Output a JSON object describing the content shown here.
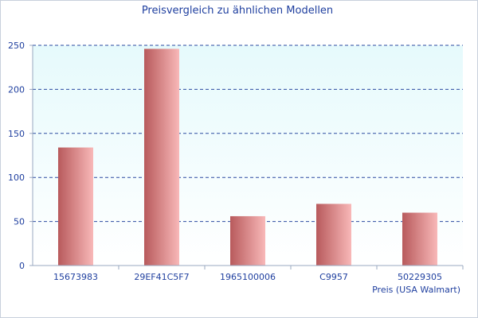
{
  "chart_data": {
    "type": "bar",
    "title": "Preisvergleich zu ähnlichen Modellen",
    "xlabel": "Preis (USA Walmart)",
    "ylabel": "",
    "categories": [
      "15673983",
      "29EF41C5F7",
      "1965100006",
      "C9957",
      "50229305"
    ],
    "values": [
      134,
      246,
      56,
      70,
      60
    ],
    "ylim": [
      0,
      250
    ],
    "yticks": [
      0,
      50,
      100,
      150,
      200,
      250
    ],
    "grid": true,
    "colors": {
      "plot_background_top": "#e6fafc",
      "plot_background_bottom": "#ffffff",
      "bar_dark": "#b85a5c",
      "bar_light": "#f8b8b8",
      "gridline": "#2b4aa0",
      "text": "#1f3f9f"
    }
  }
}
